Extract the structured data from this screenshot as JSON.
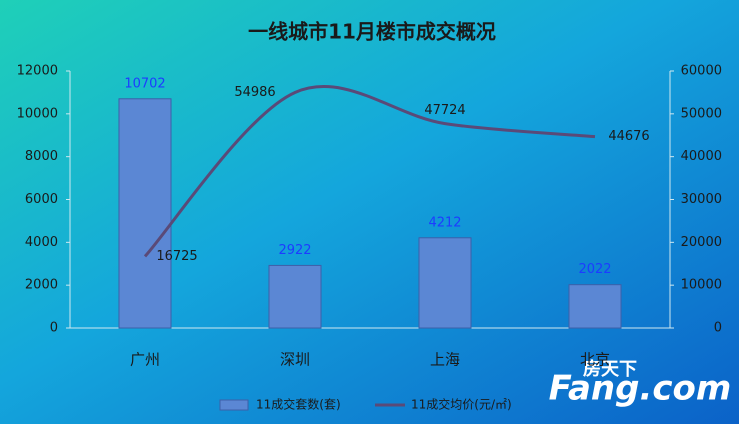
{
  "chart_data": {
    "type": "bar",
    "title": "一线城市11月楼市成交概况",
    "categories": [
      "广州",
      "深圳",
      "上海",
      "北京"
    ],
    "series": [
      {
        "name": "11成交套数(套)",
        "type": "bar",
        "color": "#5b87d4",
        "values": [
          10702,
          2922,
          4212,
          2022
        ]
      },
      {
        "name": "11成交均价(元/㎡)",
        "type": "line",
        "axis": "y2",
        "color": "#5a4a78",
        "values": [
          16725,
          54986,
          47724,
          44676
        ]
      }
    ],
    "ylim": [
      0,
      12000
    ],
    "yticks": [
      0,
      2000,
      4000,
      6000,
      8000,
      10000,
      12000
    ],
    "y2lim": [
      0,
      60000
    ],
    "y2ticks": [
      0,
      10000,
      20000,
      30000,
      40000,
      50000,
      60000
    ],
    "legend": "bottom"
  },
  "watermark": {
    "cn": "房天下",
    "en": "Fang.com"
  }
}
